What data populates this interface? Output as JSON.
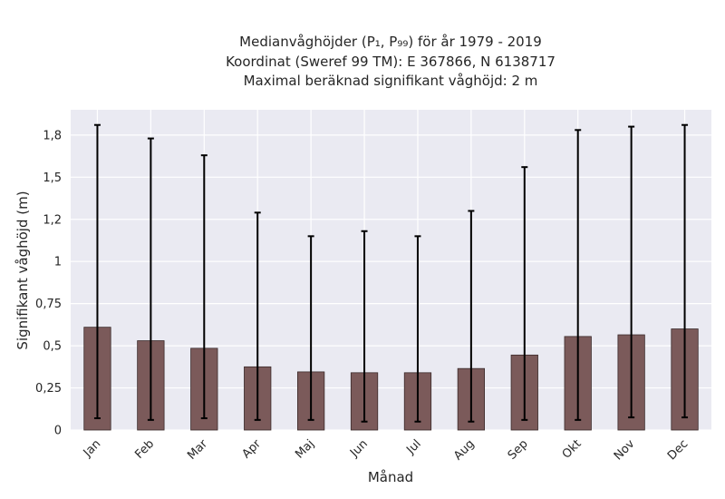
{
  "chart_data": {
    "type": "bar",
    "title_lines": [
      "Medianvåghöjder (P₁, P₉₉) för år 1979 - 2019",
      "Koordinat (Sweref 99 TM): E 367866, N 6138717",
      "Maximal beräknad signifikant våghöjd: 2 m"
    ],
    "xlabel": "Månad",
    "ylabel": "Signifikant våghöjd (m)",
    "categories": [
      "Jan",
      "Feb",
      "Mar",
      "Apr",
      "Maj",
      "Jun",
      "Jul",
      "Aug",
      "Sep",
      "Okt",
      "Nov",
      "Dec"
    ],
    "values": [
      0.61,
      0.53,
      0.485,
      0.375,
      0.345,
      0.34,
      0.34,
      0.365,
      0.445,
      0.555,
      0.565,
      0.6
    ],
    "error_low": [
      0.07,
      0.06,
      0.07,
      0.06,
      0.06,
      0.05,
      0.05,
      0.05,
      0.06,
      0.06,
      0.075,
      0.075
    ],
    "error_high": [
      1.81,
      1.73,
      1.63,
      1.29,
      1.15,
      1.18,
      1.15,
      1.3,
      1.56,
      1.78,
      1.8,
      1.81
    ],
    "ylim": [
      0,
      1.9
    ],
    "yticks": [
      0,
      0.25,
      0.5,
      0.75,
      1,
      1.25,
      1.5,
      1.75
    ],
    "ytick_labels": [
      "0",
      "0,25",
      "0,5",
      "0,75",
      "1",
      "1,2",
      "1,5",
      "1,8"
    ],
    "grid": true,
    "colors": {
      "bar": "#7b5a5a",
      "bar_edge": "#3a2a2a",
      "errorbar": "#000000",
      "plot_bg": "#eaeaf2",
      "grid": "#ffffff"
    }
  }
}
